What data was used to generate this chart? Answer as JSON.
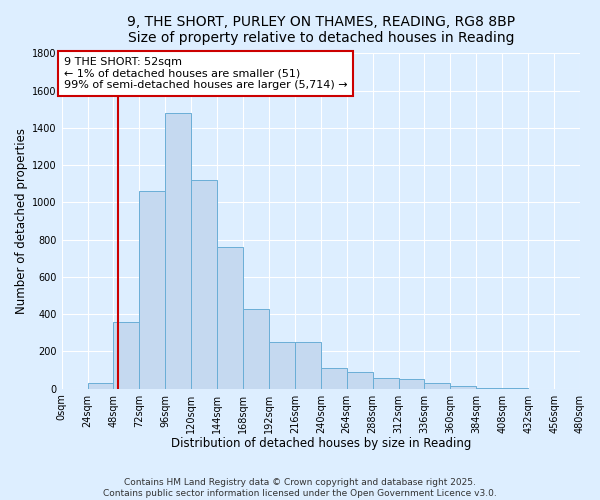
{
  "title_line1": "9, THE SHORT, PURLEY ON THAMES, READING, RG8 8BP",
  "title_line2": "Size of property relative to detached houses in Reading",
  "xlabel": "Distribution of detached houses by size in Reading",
  "ylabel": "Number of detached properties",
  "bin_edges": [
    0,
    24,
    48,
    72,
    96,
    120,
    144,
    168,
    192,
    216,
    240,
    264,
    288,
    312,
    336,
    360,
    384,
    408,
    432,
    456,
    480
  ],
  "bar_heights": [
    0,
    30,
    360,
    1060,
    1480,
    1120,
    760,
    430,
    250,
    250,
    110,
    90,
    60,
    50,
    30,
    15,
    5,
    3,
    1,
    0
  ],
  "bar_color": "#c5d9f0",
  "bar_edge_color": "#6aaed6",
  "property_size": 52,
  "property_label": "9 THE SHORT: 52sqm",
  "annotation_line2": "← 1% of detached houses are smaller (51)",
  "annotation_line3": "99% of semi-detached houses are larger (5,714) →",
  "annotation_box_facecolor": "#ffffff",
  "annotation_box_edgecolor": "#cc0000",
  "red_line_color": "#cc0000",
  "ylim_max": 1800,
  "yticks": [
    0,
    200,
    400,
    600,
    800,
    1000,
    1200,
    1400,
    1600,
    1800
  ],
  "bg_color": "#ddeeff",
  "grid_color": "#ffffff",
  "title_fontsize": 10,
  "axis_label_fontsize": 8.5,
  "tick_fontsize": 7,
  "annotation_fontsize": 8,
  "footer_fontsize": 6.5,
  "footer_line1": "Contains HM Land Registry data © Crown copyright and database right 2025.",
  "footer_line2": "Contains public sector information licensed under the Open Government Licence v3.0."
}
